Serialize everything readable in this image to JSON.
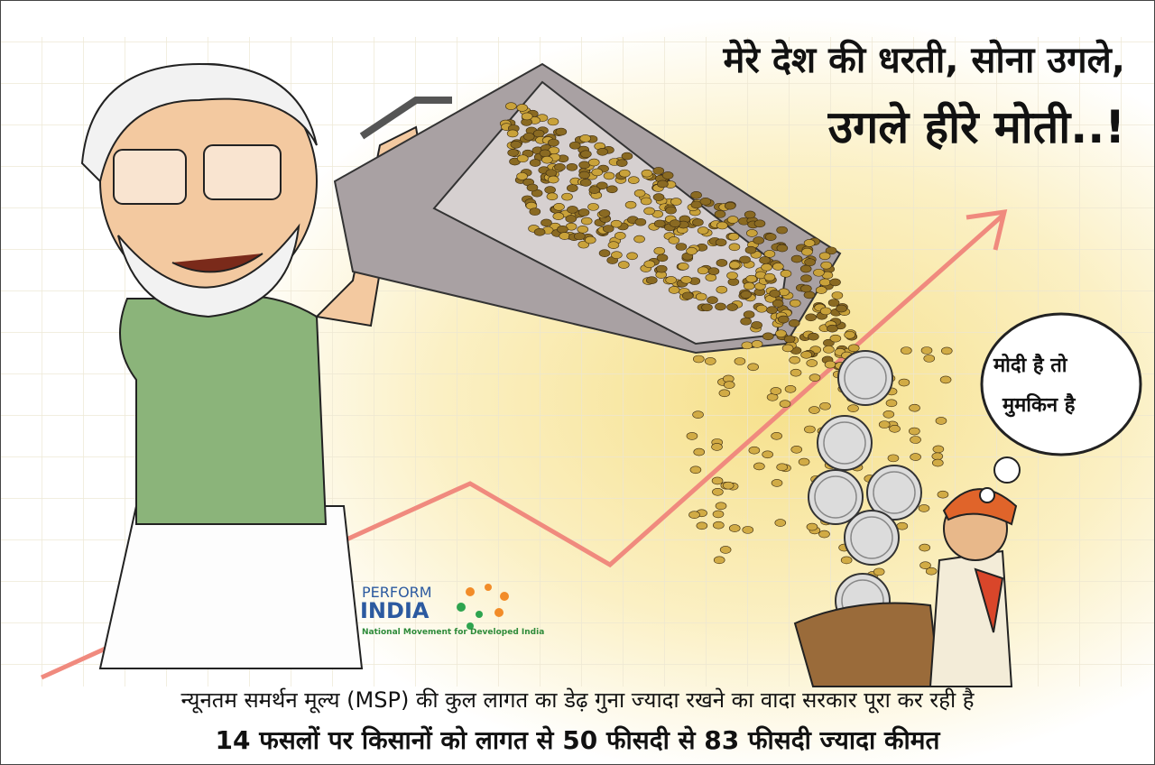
{
  "header": {
    "title_line1": "मेरे देश की धरती, सोना उगले,",
    "title_line2": "उगले हीरे मोती..!"
  },
  "speech_bubble": {
    "line1": "मोदी है तो",
    "line2": "मुमकिन है"
  },
  "logo": {
    "name_top": "PERFORM",
    "name_bottom": "INDIA",
    "tagline": "National Movement for Developed India"
  },
  "footer": {
    "line1": "न्यूनतम समर्थन मूल्य (MSP) की कुल लागत का डेढ़ गुना ज्यादा रखने का वादा सरकार पूरा कर रही है",
    "line2": "14 फसलों पर किसानों को लागत से 50 फीसदी से 83 फीसदी ज्यादा कीमत"
  }
}
